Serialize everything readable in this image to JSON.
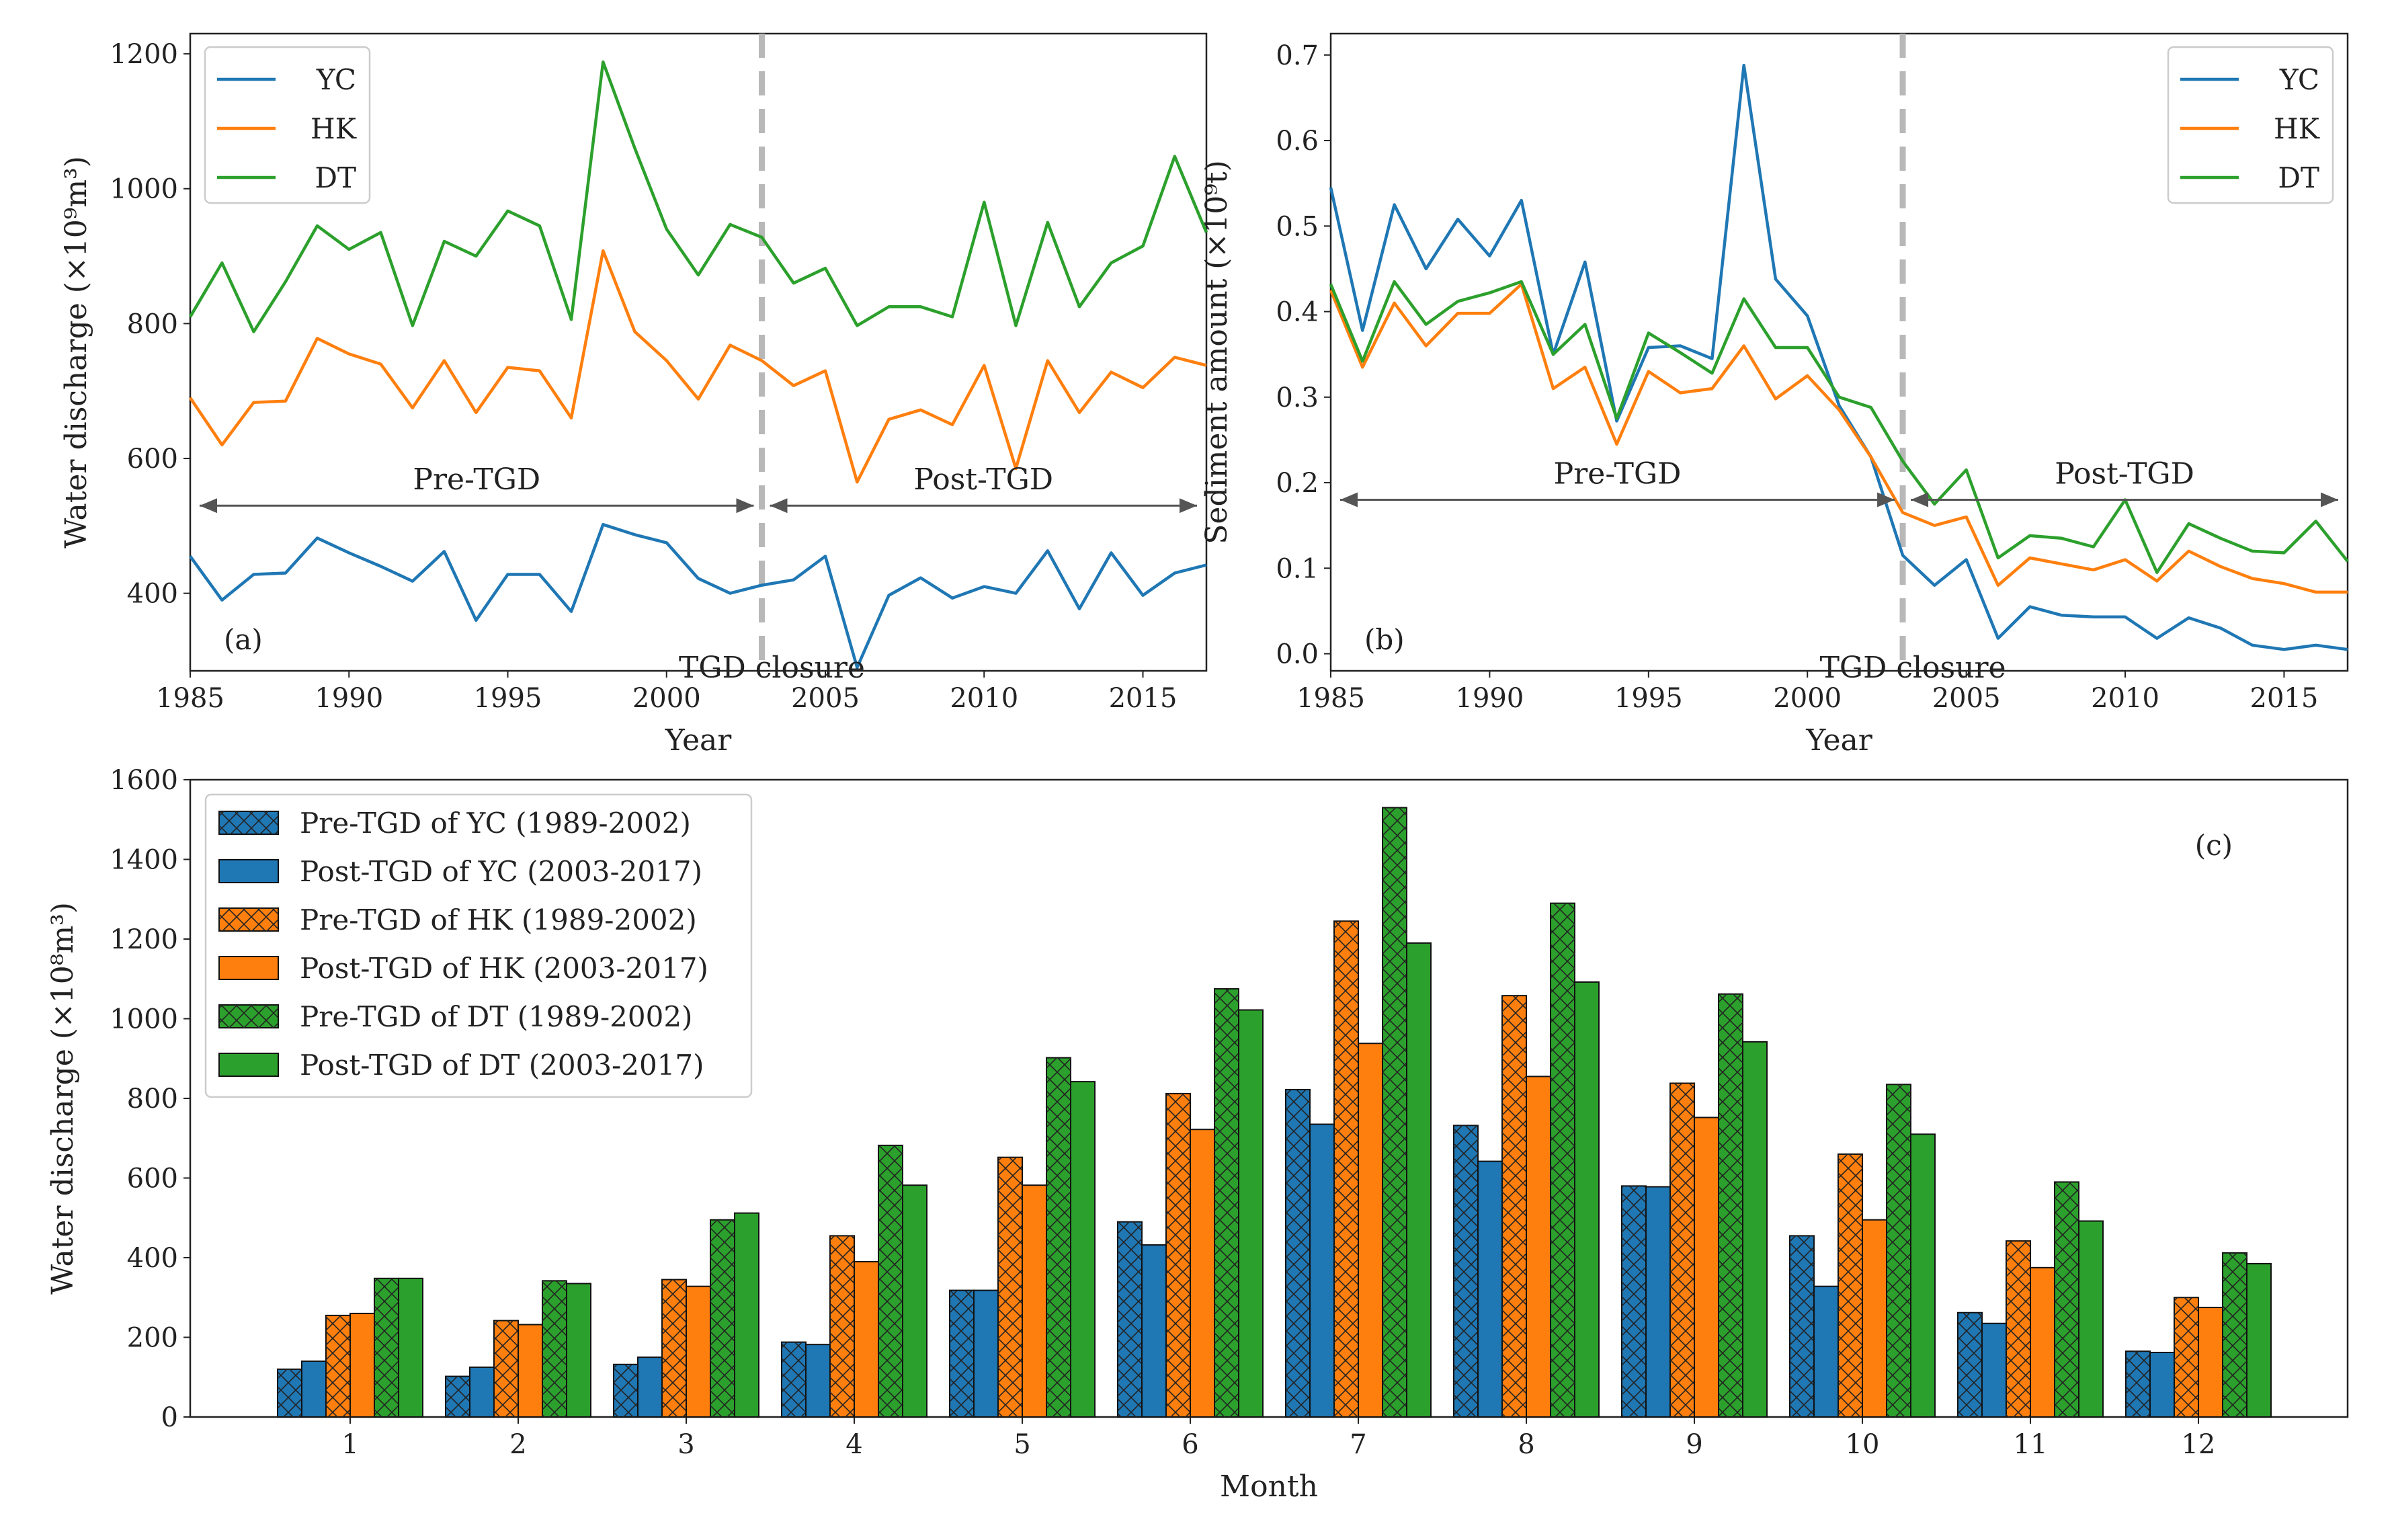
{
  "chart_data": [
    {
      "id": "a",
      "type": "line",
      "panel_label": "(a)",
      "xlabel": "Year",
      "ylabel": "Water discharge (×10⁹m³)",
      "xlim": [
        1985,
        2017
      ],
      "ylim": [
        285,
        1230
      ],
      "xticks": [
        1985,
        1990,
        1995,
        2000,
        2005,
        2010,
        2015
      ],
      "yticks": [
        400,
        600,
        800,
        1000,
        1200
      ],
      "x": [
        1985,
        1986,
        1987,
        1988,
        1989,
        1990,
        1991,
        1992,
        1993,
        1994,
        1995,
        1996,
        1997,
        1998,
        1999,
        2000,
        2001,
        2002,
        2003,
        2004,
        2005,
        2006,
        2007,
        2008,
        2009,
        2010,
        2011,
        2012,
        2013,
        2014,
        2015,
        2016,
        2017
      ],
      "series": [
        {
          "name": "YC",
          "color": "#1f77b4",
          "values": [
            455,
            390,
            428,
            430,
            482,
            460,
            440,
            418,
            462,
            360,
            428,
            428,
            373,
            502,
            487,
            475,
            422,
            400,
            412,
            420,
            455,
            290,
            397,
            423,
            393,
            410,
            400,
            463,
            377,
            460,
            397,
            430,
            442
          ]
        },
        {
          "name": "HK",
          "color": "#ff7f0e",
          "values": [
            690,
            620,
            683,
            685,
            778,
            755,
            740,
            675,
            745,
            668,
            735,
            730,
            660,
            908,
            788,
            745,
            688,
            768,
            745,
            708,
            730,
            565,
            658,
            672,
            650,
            738,
            585,
            745,
            668,
            728,
            705,
            750,
            738
          ]
        },
        {
          "name": "DT",
          "color": "#2ca02c",
          "values": [
            810,
            890,
            788,
            862,
            945,
            910,
            935,
            797,
            922,
            900,
            967,
            945,
            806,
            1188,
            1060,
            940,
            872,
            947,
            928,
            860,
            882,
            797,
            825,
            825,
            810,
            980,
            797,
            950,
            825,
            890,
            915,
            1048,
            935
          ]
        }
      ],
      "divider_x": 2003,
      "annotations": {
        "pre": "Pre-TGD",
        "post": "Post-TGD",
        "closure": "TGD closure",
        "arrow_y": 530
      },
      "legend": [
        "YC",
        "HK",
        "DT"
      ],
      "legend_loc": "upper-left"
    },
    {
      "id": "b",
      "type": "line",
      "panel_label": "(b)",
      "xlabel": "Year",
      "ylabel": "Sediment amount (×10⁹t)",
      "xlim": [
        1985,
        2017
      ],
      "ylim": [
        -0.02,
        0.725
      ],
      "xticks": [
        1985,
        1990,
        1995,
        2000,
        2005,
        2010,
        2015
      ],
      "yticks": [
        0.0,
        0.1,
        0.2,
        0.3,
        0.4,
        0.5,
        0.6,
        0.7
      ],
      "ytick_labels": [
        "0.0",
        "0.1",
        "0.2",
        "0.3",
        "0.4",
        "0.5",
        "0.6",
        "0.7"
      ],
      "x": [
        1985,
        1986,
        1987,
        1988,
        1989,
        1990,
        1991,
        1992,
        1993,
        1994,
        1995,
        1996,
        1997,
        1998,
        1999,
        2000,
        2001,
        2002,
        2003,
        2004,
        2005,
        2006,
        2007,
        2008,
        2009,
        2010,
        2011,
        2012,
        2013,
        2014,
        2015,
        2016,
        2017
      ],
      "series": [
        {
          "name": "YC",
          "color": "#1f77b4",
          "values": [
            0.545,
            0.378,
            0.525,
            0.45,
            0.508,
            0.465,
            0.53,
            0.35,
            0.458,
            0.272,
            0.358,
            0.36,
            0.345,
            0.688,
            0.438,
            0.395,
            0.29,
            0.23,
            0.115,
            0.08,
            0.11,
            0.018,
            0.055,
            0.045,
            0.043,
            0.043,
            0.018,
            0.042,
            0.03,
            0.01,
            0.005,
            0.01,
            0.005
          ]
        },
        {
          "name": "HK",
          "color": "#ff7f0e",
          "values": [
            0.425,
            0.335,
            0.41,
            0.36,
            0.398,
            0.398,
            0.432,
            0.31,
            0.335,
            0.245,
            0.33,
            0.305,
            0.31,
            0.36,
            0.298,
            0.325,
            0.285,
            0.23,
            0.165,
            0.15,
            0.16,
            0.08,
            0.112,
            0.105,
            0.098,
            0.11,
            0.085,
            0.12,
            0.102,
            0.088,
            0.082,
            0.072,
            0.072
          ]
        },
        {
          "name": "DT",
          "color": "#2ca02c",
          "values": [
            0.432,
            0.342,
            0.435,
            0.385,
            0.412,
            0.422,
            0.435,
            0.35,
            0.385,
            0.275,
            0.375,
            0.352,
            0.328,
            0.415,
            0.358,
            0.358,
            0.3,
            0.288,
            0.225,
            0.175,
            0.215,
            0.112,
            0.138,
            0.135,
            0.125,
            0.18,
            0.095,
            0.152,
            0.135,
            0.12,
            0.118,
            0.155,
            0.108
          ]
        }
      ],
      "divider_x": 2003,
      "annotations": {
        "pre": "Pre-TGD",
        "post": "Post-TGD",
        "closure": "TGD closure",
        "arrow_y": 0.18
      },
      "legend": [
        "YC",
        "HK",
        "DT"
      ],
      "legend_loc": "upper-right"
    },
    {
      "id": "c",
      "type": "bar",
      "panel_label": "(c)",
      "xlabel": "Month",
      "ylabel": "Water discharge (×10⁸m³)",
      "ylim": [
        0,
        1600
      ],
      "yticks": [
        0,
        200,
        400,
        600,
        800,
        1000,
        1200,
        1400,
        1600
      ],
      "categories": [
        "1",
        "2",
        "3",
        "4",
        "5",
        "6",
        "7",
        "8",
        "9",
        "10",
        "11",
        "12"
      ],
      "series": [
        {
          "name": "Pre-TGD of YC (1989-2002)",
          "color": "#1f77b4",
          "hatch": true,
          "values": [
            120,
            102,
            132,
            188,
            318,
            490,
            822,
            732,
            580,
            455,
            262,
            165
          ]
        },
        {
          "name": "Post-TGD of YC (2003-2017)",
          "color": "#1f77b4",
          "hatch": false,
          "values": [
            140,
            125,
            150,
            182,
            318,
            432,
            735,
            642,
            578,
            328,
            235,
            162
          ]
        },
        {
          "name": "Pre-TGD of HK  (1989-2002)",
          "color": "#ff7f0e",
          "hatch": true,
          "values": [
            255,
            242,
            345,
            455,
            652,
            812,
            1245,
            1058,
            838,
            660,
            442,
            300
          ]
        },
        {
          "name": "Post-TGD of HK (2003-2017)",
          "color": "#ff7f0e",
          "hatch": false,
          "values": [
            260,
            232,
            328,
            390,
            582,
            722,
            938,
            855,
            752,
            495,
            375,
            275
          ]
        },
        {
          "name": "Pre-TGD of DT  (1989-2002)",
          "color": "#2ca02c",
          "hatch": true,
          "values": [
            348,
            342,
            495,
            682,
            902,
            1075,
            1530,
            1290,
            1062,
            835,
            590,
            412
          ]
        },
        {
          "name": "Post-TGD of DT (2003-2017)",
          "color": "#2ca02c",
          "hatch": false,
          "values": [
            348,
            335,
            512,
            582,
            842,
            1022,
            1190,
            1092,
            942,
            710,
            492,
            385
          ]
        }
      ],
      "legend_loc": "upper-left"
    }
  ]
}
